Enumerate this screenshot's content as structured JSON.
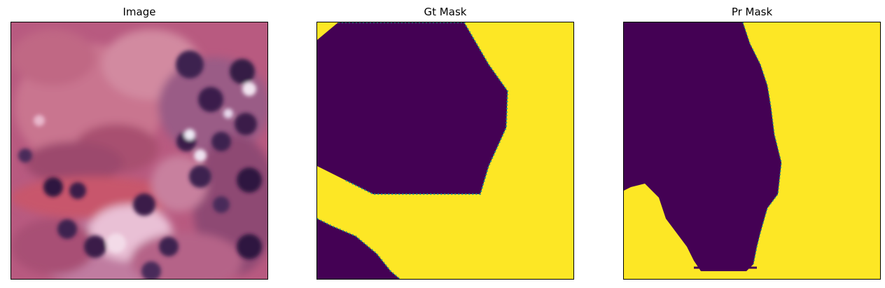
{
  "figure": {
    "panels": [
      {
        "id": "image",
        "title": "Image"
      },
      {
        "id": "gt",
        "title": "Gt Mask"
      },
      {
        "id": "pr",
        "title": "Pr Mask"
      }
    ],
    "colors": {
      "mask_background": "#440154",
      "mask_foreground": "#fde725",
      "mask_edge": "#21918c",
      "tissue_pink": "#c86a8e",
      "tissue_light": "#e7b6c9",
      "nucleus_dark": "#3a1f4a",
      "stroma_red": "#b8364f"
    }
  }
}
